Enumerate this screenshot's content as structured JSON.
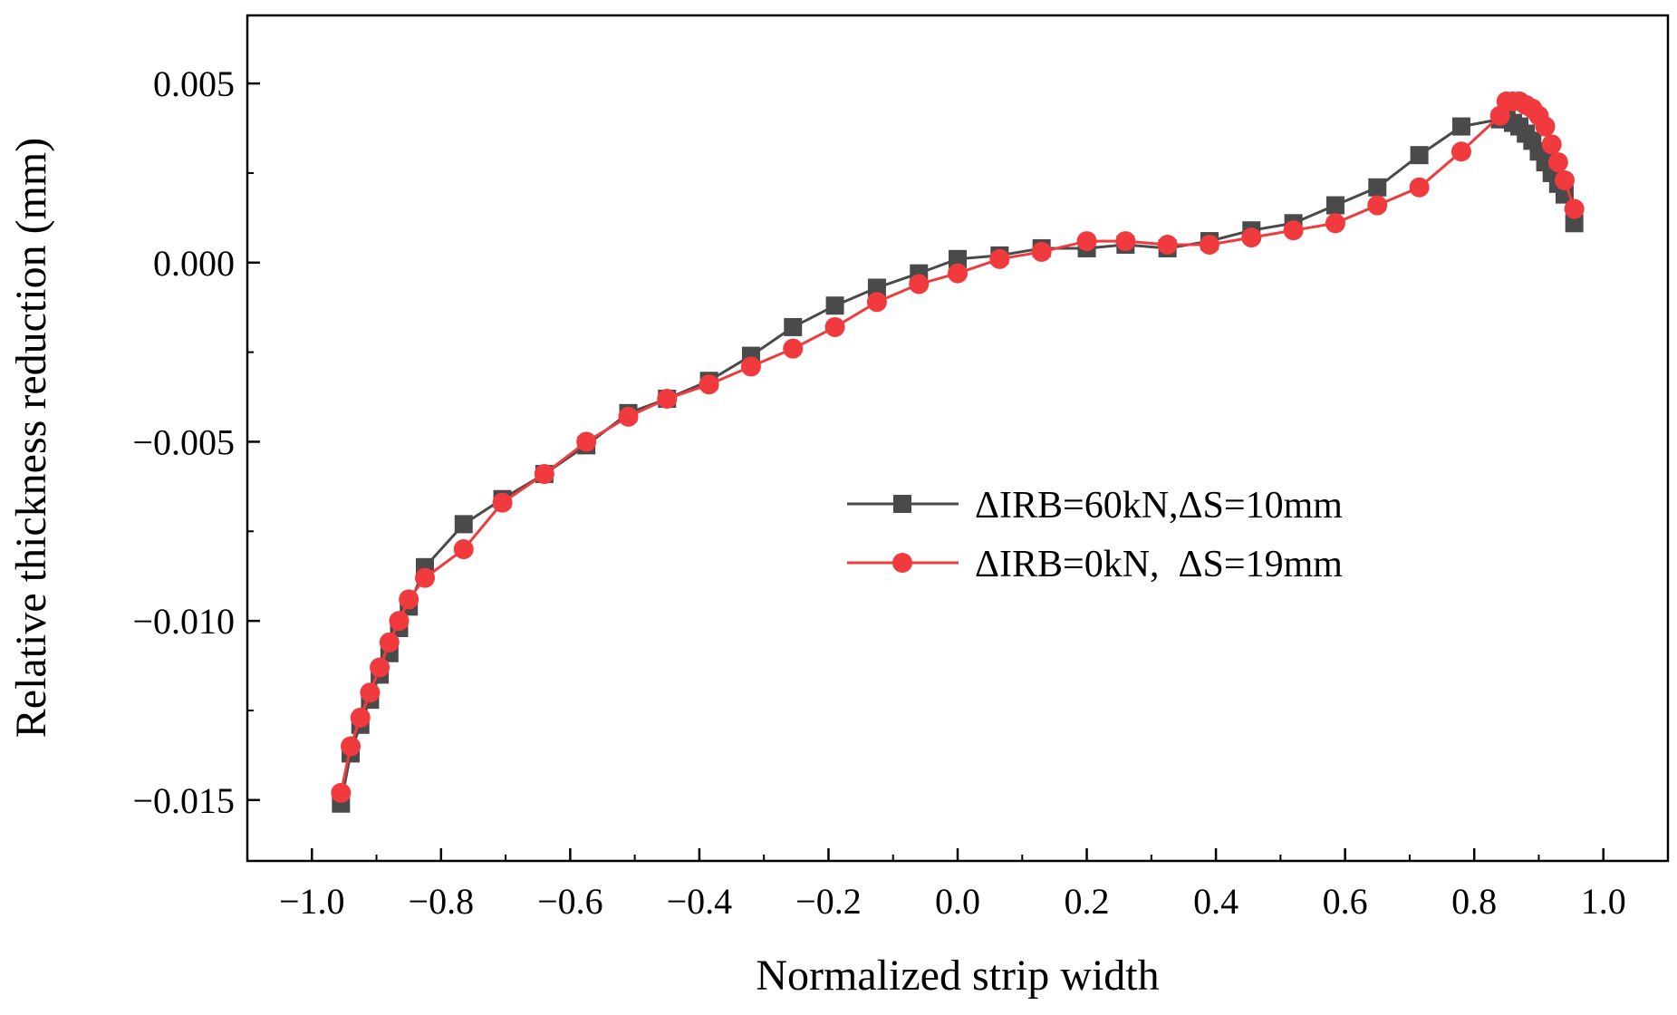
{
  "chart_data": {
    "type": "line",
    "title": "",
    "xlabel": "Normalized strip width",
    "ylabel": "Relative thickness reduction (mm)",
    "xlim": [
      -1.1,
      1.1
    ],
    "ylim": [
      -0.0167,
      0.0069
    ],
    "x_ticks": [
      -1.0,
      -0.8,
      -0.6,
      -0.4,
      -0.2,
      0.0,
      0.2,
      0.4,
      0.6,
      0.8,
      1.0
    ],
    "x_tick_labels": [
      "−1.0",
      "−0.8",
      "−0.6",
      "−0.4",
      "−0.2",
      "0.0",
      "0.2",
      "0.4",
      "0.6",
      "0.8",
      "1.0"
    ],
    "y_ticks": [
      -0.015,
      -0.01,
      -0.005,
      0.0,
      0.005
    ],
    "y_tick_labels": [
      "−0.015",
      "−0.010",
      "−0.005",
      "0.000",
      "0.005"
    ],
    "grid": false,
    "legend_position": "right",
    "series": [
      {
        "name": "ΔIRB=60kN,ΔS=10mm",
        "color": "#4a4a4a",
        "marker": "square",
        "x": [
          -0.955,
          -0.94,
          -0.925,
          -0.91,
          -0.895,
          -0.88,
          -0.865,
          -0.85,
          -0.825,
          -0.765,
          -0.705,
          -0.64,
          -0.575,
          -0.51,
          -0.45,
          -0.385,
          -0.32,
          -0.255,
          -0.19,
          -0.125,
          -0.06,
          0.0,
          0.065,
          0.13,
          0.2,
          0.26,
          0.325,
          0.39,
          0.455,
          0.52,
          0.585,
          0.65,
          0.715,
          0.78,
          0.84,
          0.85,
          0.86,
          0.87,
          0.88,
          0.89,
          0.9,
          0.91,
          0.92,
          0.93,
          0.94,
          0.955
        ],
        "values": [
          -0.0151,
          -0.0137,
          -0.0129,
          -0.0122,
          -0.0115,
          -0.0109,
          -0.0102,
          -0.0096,
          -0.0085,
          -0.0073,
          -0.0066,
          -0.0059,
          -0.0051,
          -0.0042,
          -0.0038,
          -0.0033,
          -0.0026,
          -0.0018,
          -0.0012,
          -0.0007,
          -0.0003,
          0.0001,
          0.0002,
          0.0004,
          0.0004,
          0.0005,
          0.0004,
          0.0006,
          0.0009,
          0.0011,
          0.0016,
          0.0021,
          0.003,
          0.0038,
          0.004,
          0.004,
          0.0039,
          0.0038,
          0.0036,
          0.0034,
          0.0031,
          0.0028,
          0.0025,
          0.0022,
          0.0019,
          0.0011
        ]
      },
      {
        "name": "ΔIRB=0kN,  ΔS=19mm",
        "color": "#f03a3e",
        "marker": "circle",
        "x": [
          -0.955,
          -0.94,
          -0.925,
          -0.91,
          -0.895,
          -0.88,
          -0.865,
          -0.85,
          -0.825,
          -0.765,
          -0.705,
          -0.64,
          -0.575,
          -0.51,
          -0.45,
          -0.385,
          -0.32,
          -0.255,
          -0.19,
          -0.125,
          -0.06,
          0.0,
          0.065,
          0.13,
          0.2,
          0.26,
          0.325,
          0.39,
          0.455,
          0.52,
          0.585,
          0.65,
          0.715,
          0.78,
          0.84,
          0.85,
          0.86,
          0.87,
          0.88,
          0.89,
          0.9,
          0.91,
          0.92,
          0.93,
          0.94,
          0.955
        ],
        "values": [
          -0.0148,
          -0.0135,
          -0.0127,
          -0.012,
          -0.0113,
          -0.0106,
          -0.01,
          -0.0094,
          -0.0088,
          -0.008,
          -0.0067,
          -0.0059,
          -0.005,
          -0.0043,
          -0.0038,
          -0.0034,
          -0.0029,
          -0.0024,
          -0.0018,
          -0.0011,
          -0.0006,
          -0.0003,
          0.0001,
          0.0003,
          0.0006,
          0.0006,
          0.0005,
          0.0005,
          0.0007,
          0.0009,
          0.0011,
          0.0016,
          0.0021,
          0.0031,
          0.0041,
          0.0045,
          0.0045,
          0.0045,
          0.0044,
          0.0043,
          0.0041,
          0.0038,
          0.0033,
          0.0028,
          0.0023,
          0.0015
        ]
      }
    ]
  }
}
